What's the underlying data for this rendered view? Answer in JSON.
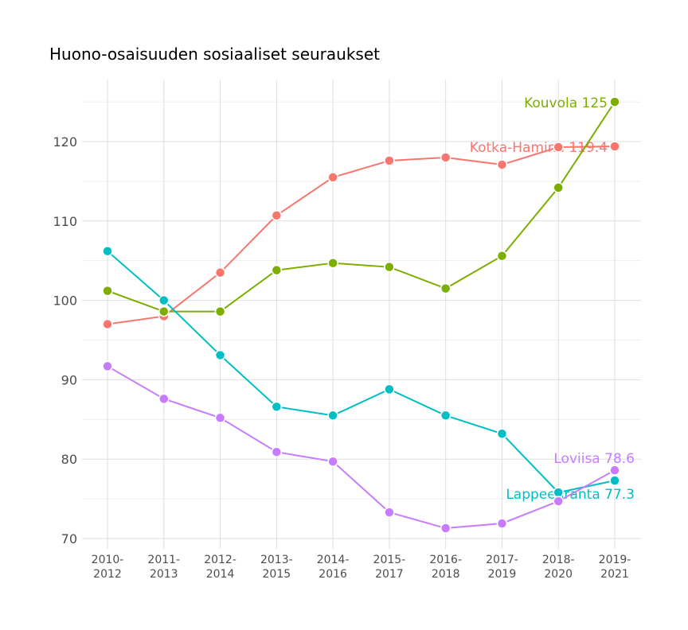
{
  "chart_data": {
    "type": "line",
    "title": "Huono-osaisuuden sosiaaliset seuraukset",
    "xlabel": "",
    "ylabel": "",
    "categories": [
      "2010-2012",
      "2011-2013",
      "2012-2014",
      "2013-2015",
      "2014-2016",
      "2015-2017",
      "2016-2018",
      "2017-2019",
      "2018-2020",
      "2019-2021"
    ],
    "ylim": [
      68,
      127
    ],
    "yticks": [
      70,
      80,
      90,
      100,
      110,
      120
    ],
    "grid": true,
    "legend": "none",
    "series": [
      {
        "name": "Kotka-Hamina",
        "end_label": "Kotka-Hamina 119.4",
        "color": "#F8766D",
        "values": [
          97.0,
          98.0,
          103.5,
          110.7,
          115.5,
          117.6,
          118.0,
          117.1,
          119.3,
          119.4
        ]
      },
      {
        "name": "Kouvola",
        "end_label": "Kouvola 125",
        "color": "#7CAE00",
        "values": [
          101.2,
          98.6,
          98.6,
          103.8,
          104.7,
          104.2,
          101.5,
          105.6,
          114.2,
          125.0
        ]
      },
      {
        "name": "Lappeenranta",
        "end_label": "Lappeenranta 77.3",
        "color": "#00BFC4",
        "values": [
          106.2,
          100.0,
          93.1,
          86.6,
          85.5,
          88.8,
          85.5,
          83.2,
          75.8,
          77.3
        ]
      },
      {
        "name": "Loviisa",
        "end_label": "Loviisa 78.6",
        "color": "#C77CFF",
        "values": [
          91.7,
          87.6,
          85.2,
          80.9,
          79.7,
          73.3,
          71.3,
          71.9,
          74.7,
          78.6
        ]
      }
    ]
  }
}
